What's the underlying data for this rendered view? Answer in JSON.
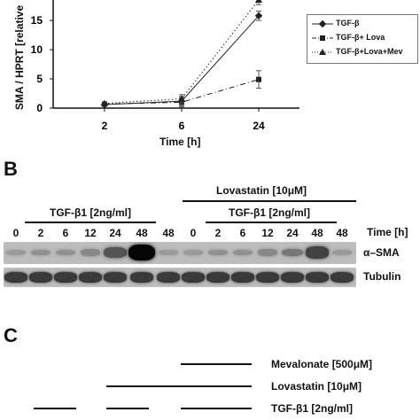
{
  "panelA": {
    "ylabel": "SMA / HPRT [relative",
    "xlabel": "Time [h]",
    "legend": [
      "TGF-β",
      "TGF-β+ Lova",
      "TGF-β+Lova+Mev"
    ]
  },
  "chart_data": {
    "type": "line",
    "categories": [
      "2",
      "6",
      "24"
    ],
    "yticks": [
      "0",
      "5",
      "10",
      "15"
    ],
    "ylim": [
      0,
      18.5
    ],
    "xlabel": "Time [h]",
    "ylabel": "SMA / HPRT [relative",
    "grid": false,
    "legend_position": "top-right",
    "series": [
      {
        "name": "TGF-β",
        "values": [
          0.6,
          1.2,
          15.8
        ],
        "errors": [
          0.2,
          0.8,
          0.8
        ],
        "marker": "diamond",
        "dash": "solid"
      },
      {
        "name": "TGF-β+ Lova",
        "values": [
          0.7,
          1.0,
          4.9
        ],
        "errors": [
          0.2,
          0.8,
          1.5
        ],
        "marker": "square",
        "dash": "dashdot"
      },
      {
        "name": "TGF-β+Lova+Mev",
        "values": [
          0.8,
          1.6,
          18.5
        ],
        "errors": [
          0.2,
          0.7,
          0.8
        ],
        "marker": "triangle",
        "dash": "dotted"
      }
    ]
  },
  "panelB": {
    "letter": "B",
    "lovastatin_label": "Lovastatin [10μM]",
    "tgf_label_left": "TGF-β1 [2ng/ml]",
    "tgf_label_right": "TGF-β1 [2ng/ml]",
    "time_label": "Time [h]",
    "lanes": [
      "0",
      "2",
      "6",
      "12",
      "24",
      "48",
      "48",
      "0",
      "2",
      "6",
      "12",
      "24",
      "48",
      "48"
    ],
    "sma_label": "α–SMA",
    "tubulin_label": "Tubulin",
    "sma_intensity": [
      0.15,
      0.2,
      0.2,
      0.25,
      0.55,
      1.0,
      0.15,
      0.15,
      0.2,
      0.2,
      0.25,
      0.35,
      0.65,
      0.15
    ]
  },
  "panelC": {
    "letter": "C",
    "mevalonate_label": "Mevalonate [500μM]",
    "lovastatin_label": "Lovastatin [10μM]",
    "tgf_label": "TGF-β1 [2ng/ml]"
  }
}
